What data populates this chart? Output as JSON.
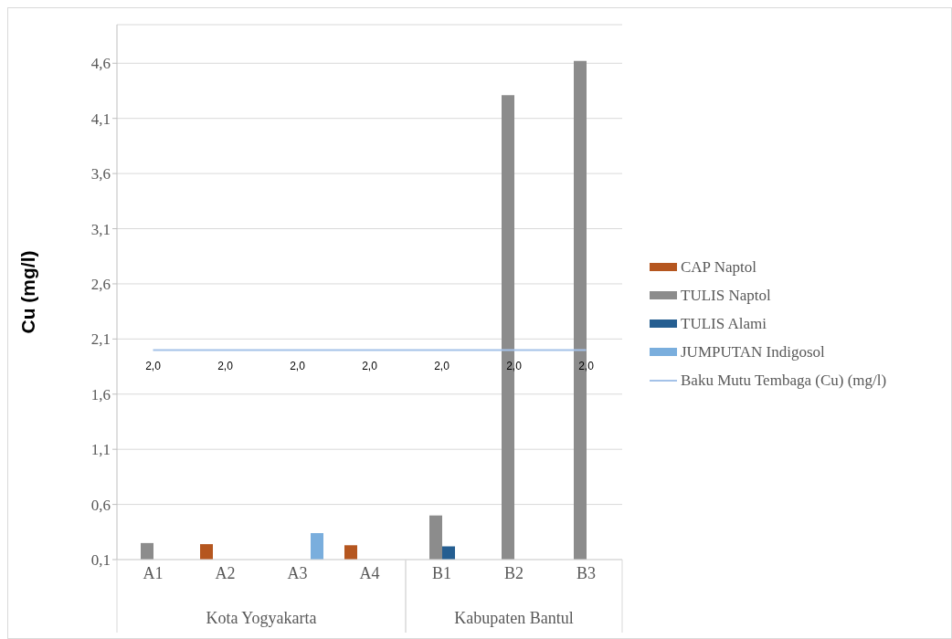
{
  "chart_data": {
    "type": "bar",
    "ylabel": "Cu (mg/l)",
    "categories": [
      "A1",
      "A2",
      "A3",
      "A4",
      "B1",
      "B2",
      "B3"
    ],
    "series": [
      {
        "name": "CAP Naptol",
        "color": "#b5561f",
        "values": [
          null,
          0.24,
          null,
          0.23,
          null,
          null,
          null
        ]
      },
      {
        "name": "TULIS Naptol",
        "color": "#8c8c8c",
        "values": [
          0.25,
          null,
          null,
          null,
          0.5,
          4.31,
          4.62
        ]
      },
      {
        "name": "TULIS Alami",
        "color": "#255e91",
        "values": [
          null,
          null,
          null,
          null,
          0.22,
          null,
          null
        ]
      },
      {
        "name": "JUMPUTAN Indigosol",
        "color": "#7aaedd",
        "values": [
          null,
          null,
          0.34,
          null,
          null,
          null,
          null
        ]
      },
      {
        "name": "Baku Mutu Tembaga (Cu) (mg/l)",
        "type": "line",
        "color": "#a4c2e8",
        "values": [
          2.0,
          2.0,
          2.0,
          2.0,
          2.0,
          2.0,
          2.0
        ],
        "value_labels": [
          "2,0",
          "2,0",
          "2,0",
          "2,0",
          "2,0",
          "2,0",
          "2,0"
        ]
      }
    ],
    "ylim": [
      0.1,
      4.95
    ],
    "yticks": [
      {
        "value": 0.1,
        "label": "0,1"
      },
      {
        "value": 0.6,
        "label": "0,6"
      },
      {
        "value": 1.1,
        "label": "1,1"
      },
      {
        "value": 1.6,
        "label": "1,6"
      },
      {
        "value": 2.1,
        "label": "2,1"
      },
      {
        "value": 2.6,
        "label": "2,6"
      },
      {
        "value": 3.1,
        "label": "3,1"
      },
      {
        "value": 3.6,
        "label": "3,6"
      },
      {
        "value": 4.1,
        "label": "4,1"
      },
      {
        "value": 4.6,
        "label": "4,6"
      }
    ],
    "grid": "y",
    "legend": "right",
    "marker": "none",
    "annotations": [
      "Kota Yogyakarta",
      "Kabupaten Bantul"
    ]
  }
}
